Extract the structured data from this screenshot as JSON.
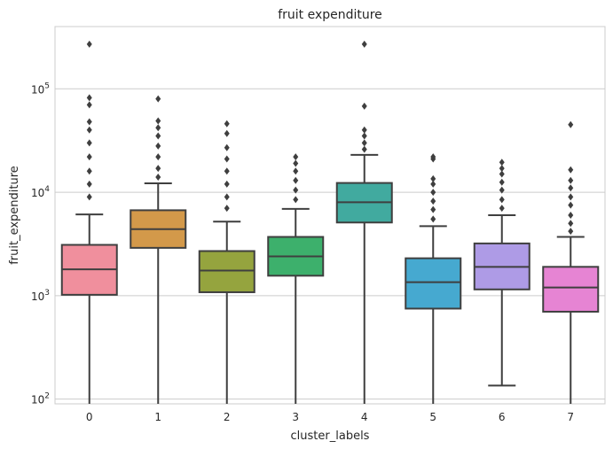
{
  "chart_data": {
    "type": "box",
    "title": "fruit expenditure",
    "xlabel": "cluster_labels",
    "ylabel": "fruit_expenditure",
    "yscale": "log",
    "ylim": [
      90,
      400000
    ],
    "yticks": [
      {
        "value": 100,
        "base": "10",
        "exp": "2"
      },
      {
        "value": 1000,
        "base": "10",
        "exp": "3"
      },
      {
        "value": 10000,
        "base": "10",
        "exp": "4"
      },
      {
        "value": 100000,
        "base": "10",
        "exp": "5"
      }
    ],
    "grid": true,
    "categories": [
      "0",
      "1",
      "2",
      "3",
      "4",
      "5",
      "6",
      "7"
    ],
    "boxes": [
      {
        "label": "0",
        "color": "#f08f9d",
        "whisker_low": 90,
        "q1": 1020,
        "median": 1800,
        "q3": 3100,
        "whisker_high": 6100,
        "outliers": [
          9000,
          12000,
          16000,
          22000,
          30000,
          40000,
          48000,
          70000,
          82000,
          270000
        ]
      },
      {
        "label": "1",
        "color": "#d3994a",
        "whisker_low": 90,
        "q1": 2900,
        "median": 4400,
        "q3": 6700,
        "whisker_high": 12200,
        "outliers": [
          14000,
          17000,
          22000,
          28000,
          35000,
          42000,
          49000,
          80000
        ]
      },
      {
        "label": "2",
        "color": "#95a43e",
        "whisker_low": 90,
        "q1": 1080,
        "median": 1750,
        "q3": 2700,
        "whisker_high": 5200,
        "outliers": [
          7000,
          9000,
          12000,
          16000,
          21000,
          27000,
          37000,
          46000
        ]
      },
      {
        "label": "3",
        "color": "#3db06c",
        "whisker_low": 90,
        "q1": 1560,
        "median": 2400,
        "q3": 3700,
        "whisker_high": 6900,
        "outliers": [
          8500,
          10500,
          13000,
          16000,
          19000,
          22000
        ]
      },
      {
        "label": "4",
        "color": "#41aa9f",
        "whisker_low": 90,
        "q1": 5100,
        "median": 8000,
        "q3": 12300,
        "whisker_high": 23000,
        "outliers": [
          26000,
          30000,
          35000,
          40000,
          68000,
          270000
        ]
      },
      {
        "label": "5",
        "color": "#46a9d0",
        "whisker_low": 90,
        "q1": 750,
        "median": 1350,
        "q3": 2300,
        "whisker_high": 4700,
        "outliers": [
          5500,
          6800,
          8200,
          10000,
          12000,
          13500,
          21000,
          22000
        ]
      },
      {
        "label": "6",
        "color": "#ae9be6",
        "whisker_low": 135,
        "q1": 1150,
        "median": 1900,
        "q3": 3200,
        "whisker_high": 6000,
        "outliers": [
          7000,
          8500,
          10500,
          12500,
          15000,
          17000,
          19500
        ]
      },
      {
        "label": "7",
        "color": "#e684d3",
        "whisker_low": 90,
        "q1": 700,
        "median": 1200,
        "q3": 1900,
        "whisker_high": 3700,
        "outliers": [
          4200,
          5000,
          6000,
          7500,
          9000,
          11000,
          13000,
          16500,
          45000
        ]
      }
    ]
  }
}
